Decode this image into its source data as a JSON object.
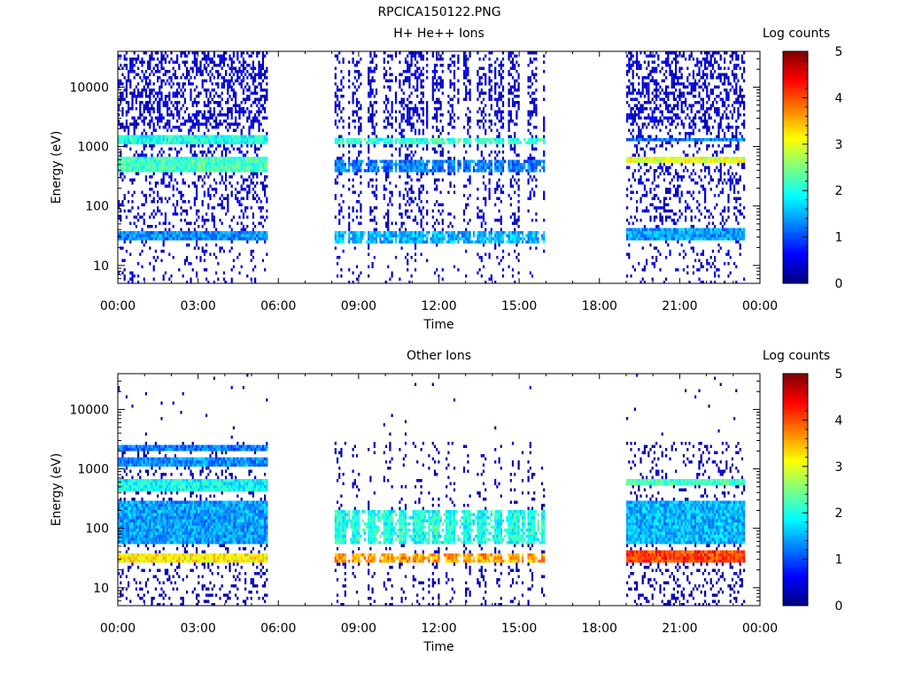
{
  "figure_title": "RPCICA150122.PNG",
  "colors": {
    "colormap": [
      "#00007f",
      "#0000ff",
      "#007fff",
      "#00ffff",
      "#7fff7f",
      "#ffff00",
      "#ff7f00",
      "#ff0000",
      "#7f0000"
    ]
  },
  "chart_data": [
    {
      "type": "heatmap",
      "title": "H+ He++ Ions",
      "xlabel": "Time",
      "ylabel": "Energy (eV)",
      "xlim": [
        "00:00",
        "24:00"
      ],
      "xticks": [
        "00:00",
        "03:00",
        "06:00",
        "09:00",
        "12:00",
        "15:00",
        "18:00",
        "21:00",
        "00:00"
      ],
      "ylim": [
        5,
        40000
      ],
      "yscale": "log",
      "yticks": [
        {
          "value": 10,
          "label": "10"
        },
        {
          "value": 100,
          "label": "100"
        },
        {
          "value": 1000,
          "label": "1000"
        },
        {
          "value": 10000,
          "label": "10000"
        }
      ],
      "colorbar": {
        "label": "Log counts",
        "range": [
          0,
          5
        ],
        "ticks": [
          "0",
          "1",
          "2",
          "3",
          "4",
          "5"
        ]
      },
      "data_intervals_hours": [
        [
          0.0,
          5.6
        ],
        [
          8.1,
          15.9
        ],
        [
          19.0,
          23.4
        ]
      ],
      "bands": [
        {
          "interval": 0,
          "energy_low": 1200,
          "energy_high": 1600,
          "log_counts": 2.0
        },
        {
          "interval": 0,
          "energy_low": 400,
          "energy_high": 750,
          "log_counts": 2.2
        },
        {
          "interval": 0,
          "energy_low": 28,
          "energy_high": 42,
          "log_counts": 1.3
        },
        {
          "interval": 1,
          "energy_low": 1150,
          "energy_high": 1500,
          "log_counts": 2.1
        },
        {
          "interval": 1,
          "energy_low": 400,
          "energy_high": 600,
          "log_counts": 1.2
        },
        {
          "interval": 1,
          "energy_low": 26,
          "energy_high": 40,
          "log_counts": 1.5
        },
        {
          "interval": 2,
          "energy_low": 1300,
          "energy_high": 1500,
          "log_counts": 1.2
        },
        {
          "interval": 2,
          "energy_low": 550,
          "energy_high": 700,
          "log_counts": 3.0
        },
        {
          "interval": 2,
          "energy_low": 28,
          "energy_high": 45,
          "log_counts": 1.4
        }
      ]
    },
    {
      "type": "heatmap",
      "title": "Other Ions",
      "xlabel": "Time",
      "ylabel": "Energy (eV)",
      "xlim": [
        "00:00",
        "24:00"
      ],
      "xticks": [
        "00:00",
        "03:00",
        "06:00",
        "09:00",
        "12:00",
        "15:00",
        "18:00",
        "21:00",
        "00:00"
      ],
      "ylim": [
        5,
        40000
      ],
      "yscale": "log",
      "yticks": [
        {
          "value": 10,
          "label": "10"
        },
        {
          "value": 100,
          "label": "100"
        },
        {
          "value": 1000,
          "label": "1000"
        },
        {
          "value": 10000,
          "label": "10000"
        }
      ],
      "colorbar": {
        "label": "Log counts",
        "range": [
          0,
          5
        ],
        "ticks": [
          "0",
          "1",
          "2",
          "3",
          "4",
          "5"
        ]
      },
      "data_intervals_hours": [
        [
          0.0,
          5.6
        ],
        [
          8.1,
          15.9
        ],
        [
          19.0,
          23.4
        ]
      ],
      "bands": [
        {
          "interval": 0,
          "energy_low": 2200,
          "energy_high": 2800,
          "log_counts": 1.2
        },
        {
          "interval": 0,
          "energy_low": 1200,
          "energy_high": 1600,
          "log_counts": 1.3
        },
        {
          "interval": 0,
          "energy_low": 420,
          "energy_high": 700,
          "log_counts": 1.9
        },
        {
          "interval": 0,
          "energy_low": 60,
          "energy_high": 300,
          "log_counts": 1.4
        },
        {
          "interval": 0,
          "energy_low": 28,
          "energy_high": 42,
          "log_counts": 3.2
        },
        {
          "interval": 1,
          "energy_low": 60,
          "energy_high": 220,
          "log_counts": 2.0
        },
        {
          "interval": 1,
          "energy_low": 28,
          "energy_high": 40,
          "log_counts": 3.6
        },
        {
          "interval": 2,
          "energy_low": 550,
          "energy_high": 680,
          "log_counts": 2.2
        },
        {
          "interval": 2,
          "energy_low": 60,
          "energy_high": 300,
          "log_counts": 1.5
        },
        {
          "interval": 2,
          "energy_low": 28,
          "energy_high": 45,
          "log_counts": 4.1
        }
      ]
    }
  ]
}
